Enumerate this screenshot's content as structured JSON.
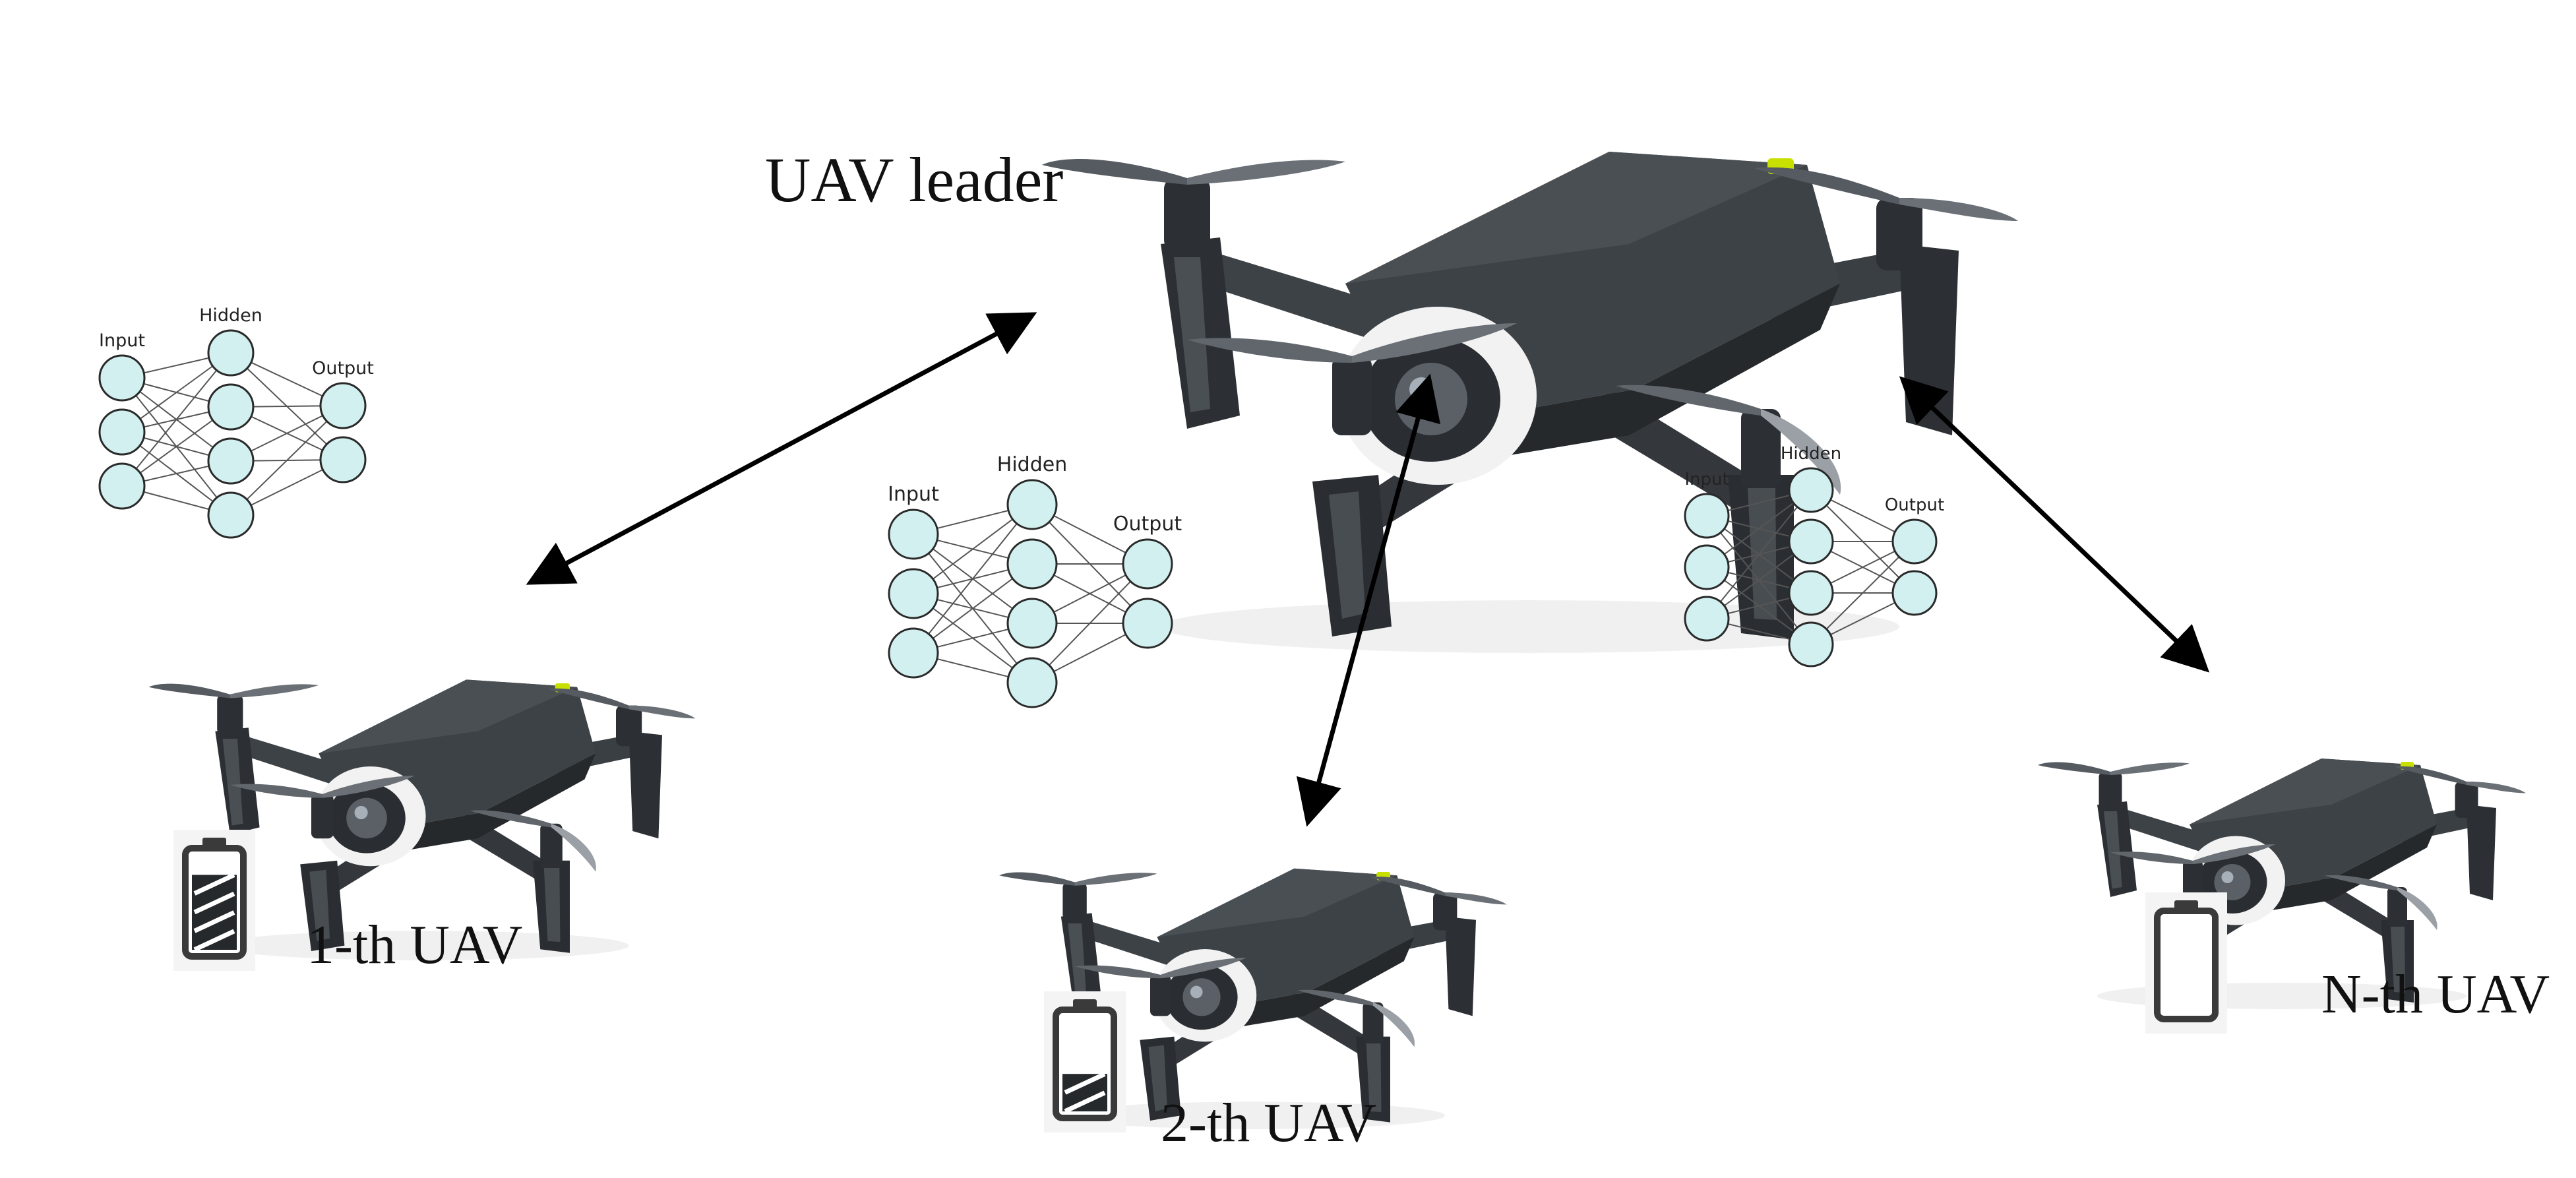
{
  "labels": {
    "leader": "UAV leader",
    "uav1": "1-th UAV",
    "uav2": "2-th UAV",
    "uavN": "N-th UAV"
  },
  "network": {
    "input": "Input",
    "hidden": "Hidden",
    "output": "Output"
  },
  "batteries": {
    "uav1": {
      "level": 0.8
    },
    "uav2": {
      "level": 0.4
    },
    "uavN": {
      "level": 0.0
    }
  },
  "colors": {
    "nn_node_fill": "#d2f0f0",
    "nn_node_stroke": "#2a2a2a",
    "drone_body": "#3d4246",
    "drone_dark": "#25292c",
    "drone_accent": "#c8e000",
    "camera_shell": "#f2f2f2",
    "arrow": "#000000",
    "battery_frame": "#3a3a3a"
  },
  "icons": [
    "drone-icon",
    "battery-icon",
    "neural-network-icon",
    "double-arrow-icon"
  ]
}
